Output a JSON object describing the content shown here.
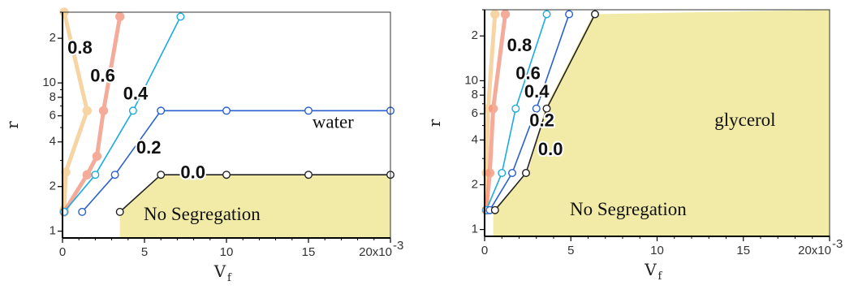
{
  "chart_data": [
    {
      "type": "line",
      "panel": "left",
      "x_scale": "linear",
      "y_scale": "log",
      "xlim": [
        0,
        0.02
      ],
      "ylim": [
        1,
        30
      ],
      "xlabel": "V",
      "xlabel_subscript": "f",
      "ylabel": "r",
      "x_ticks": [
        {
          "value": 0,
          "label": "0"
        },
        {
          "value": 0.005,
          "label": "5"
        },
        {
          "value": 0.01,
          "label": "10"
        },
        {
          "value": 0.015,
          "label": "15"
        },
        {
          "value": 0.02,
          "label": "20x10"
        }
      ],
      "x_tick_exponent": "-3",
      "y_major_ticks": [
        {
          "value": 1,
          "label": "1"
        },
        {
          "value": 2,
          "label": "2"
        },
        {
          "value": 4,
          "label": "4"
        },
        {
          "value": 6,
          "label": "6"
        },
        {
          "value": 8,
          "label": "8"
        },
        {
          "value": 10,
          "label": "10"
        },
        {
          "value": 20,
          "label": "2"
        }
      ],
      "y_minor_ticks": [
        3,
        5,
        7,
        9,
        30
      ],
      "no_segregation": {
        "label": "No Segregation",
        "color": "#f2eba8",
        "boundary": [
          [
            0.0035,
            1.35
          ],
          [
            0.006,
            2.4
          ],
          [
            0.02,
            2.4
          ]
        ]
      },
      "region_labels": [
        {
          "text": "water",
          "x": 0.0165,
          "y": 5.3
        }
      ],
      "series": [
        {
          "name": "0.8",
          "color": "#f5c27e",
          "faded": true,
          "x": [
            0.0001,
            0.0015,
            0.0002,
            0.0001,
            0.0001
          ],
          "y": [
            30,
            6.5,
            2.5,
            1.4,
            1.35
          ],
          "label_at": [
            0.0003,
            17
          ]
        },
        {
          "name": "0.6",
          "color": "#f08870",
          "faded": true,
          "x": [
            0.0035,
            0.0025,
            0.0021,
            0.0015,
            0.0001
          ],
          "y": [
            28,
            6.5,
            3.2,
            2.4,
            1.35
          ],
          "label_at": [
            0.0017,
            11
          ]
        },
        {
          "name": "0.4",
          "color": "#1aabe2",
          "faded": false,
          "x": [
            0.0001,
            0.002,
            0.0043,
            0.0072
          ],
          "y": [
            1.35,
            2.4,
            6.5,
            28
          ],
          "label_at": [
            0.0037,
            8.3
          ]
        },
        {
          "name": "0.2",
          "color": "#2a60cc",
          "faded": false,
          "x": [
            0.0012,
            0.0032,
            0.006,
            0.01,
            0.015,
            0.02
          ],
          "y": [
            1.35,
            2.4,
            6.5,
            6.5,
            6.5,
            6.5
          ],
          "label_at": [
            0.0045,
            3.6
          ]
        },
        {
          "name": "0.0",
          "color": "#222222",
          "faded": false,
          "x": [
            0.0035,
            0.006,
            0.01,
            0.015,
            0.02
          ],
          "y": [
            1.35,
            2.4,
            2.4,
            2.4,
            2.4
          ],
          "label_at": [
            0.0072,
            2.45
          ]
        }
      ]
    },
    {
      "type": "line",
      "panel": "right",
      "x_scale": "linear",
      "y_scale": "log",
      "xlim": [
        0,
        0.02
      ],
      "ylim": [
        1,
        30
      ],
      "xlabel": "V",
      "xlabel_subscript": "f",
      "ylabel": "r",
      "x_ticks": [
        {
          "value": 0,
          "label": "0"
        },
        {
          "value": 0.005,
          "label": "5"
        },
        {
          "value": 0.01,
          "label": "10"
        },
        {
          "value": 0.015,
          "label": "15"
        },
        {
          "value": 0.02,
          "label": "20x10"
        }
      ],
      "x_tick_exponent": "-3",
      "y_major_ticks": [
        {
          "value": 1,
          "label": "1"
        },
        {
          "value": 2,
          "label": "2"
        },
        {
          "value": 4,
          "label": "4"
        },
        {
          "value": 6,
          "label": "6"
        },
        {
          "value": 8,
          "label": "8"
        },
        {
          "value": 10,
          "label": "10"
        },
        {
          "value": 20,
          "label": "2"
        }
      ],
      "y_minor_ticks": [
        3,
        5,
        7,
        9,
        30
      ],
      "no_segregation": {
        "label": "No Segregation",
        "color": "#f2eba8",
        "boundary": [
          [
            0.0005,
            1.35
          ],
          [
            0.0025,
            2.4
          ],
          [
            0.0035,
            6.5
          ],
          [
            0.0063,
            28
          ]
        ]
      },
      "region_labels": [
        {
          "text": "glycerol",
          "x": 0.0151,
          "y": 5.3
        }
      ],
      "series": [
        {
          "name": "0.8",
          "color": "#f5c27e",
          "faded": true,
          "x": [
            0.0006,
            0.0002,
            0.0001,
            0.0001
          ],
          "y": [
            28,
            6.5,
            2.4,
            1.35
          ],
          "label_at": [
            0.0013,
            17
          ]
        },
        {
          "name": "0.6",
          "color": "#f08870",
          "faded": true,
          "x": [
            0.0012,
            0.0005,
            0.0003,
            0.0001
          ],
          "y": [
            28,
            6.5,
            2.4,
            1.35
          ],
          "label_at": [
            0.0018,
            11
          ]
        },
        {
          "name": "0.4",
          "color": "#1aabe2",
          "faded": false,
          "x": [
            0.0001,
            0.001,
            0.0018,
            0.0036
          ],
          "y": [
            1.35,
            2.4,
            6.5,
            28
          ],
          "label_at": [
            0.0023,
            8.3
          ]
        },
        {
          "name": "0.2",
          "color": "#2a60cc",
          "faded": false,
          "x": [
            0.0003,
            0.0016,
            0.003,
            0.0049
          ],
          "y": [
            1.35,
            2.4,
            6.5,
            28
          ],
          "label_at": [
            0.0026,
            5.3
          ]
        },
        {
          "name": "0.0",
          "color": "#222222",
          "faded": false,
          "x": [
            0.0006,
            0.0024,
            0.0036,
            0.0064
          ],
          "y": [
            1.35,
            2.4,
            6.5,
            28
          ],
          "label_at": [
            0.0031,
            3.4
          ]
        }
      ]
    }
  ]
}
